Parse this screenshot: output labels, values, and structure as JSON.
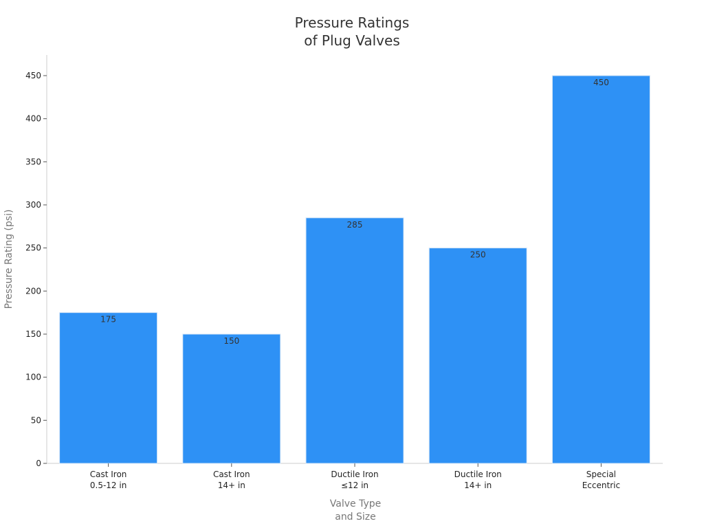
{
  "chart_data": {
    "type": "bar",
    "title_lines": [
      "Pressure Ratings",
      "of Plug Valves"
    ],
    "xlabel_lines": [
      "Valve Type",
      "and Size"
    ],
    "ylabel": "Pressure Rating (psi)",
    "categories": [
      [
        "Cast Iron",
        "0.5-12 in"
      ],
      [
        "Cast Iron",
        "14+ in"
      ],
      [
        "Ductile Iron",
        "≤12 in"
      ],
      [
        "Ductile Iron",
        "14+ in"
      ],
      [
        "Special",
        "Eccentric"
      ]
    ],
    "values": [
      175,
      150,
      285,
      250,
      450
    ],
    "data_labels": [
      "175",
      "150",
      "285",
      "250",
      "450"
    ],
    "ylim": [
      0,
      470
    ],
    "yticks": [
      0,
      50,
      100,
      150,
      200,
      250,
      300,
      350,
      400,
      450
    ],
    "bar_color": "#2e91f5",
    "grid": false,
    "legend": "none"
  }
}
